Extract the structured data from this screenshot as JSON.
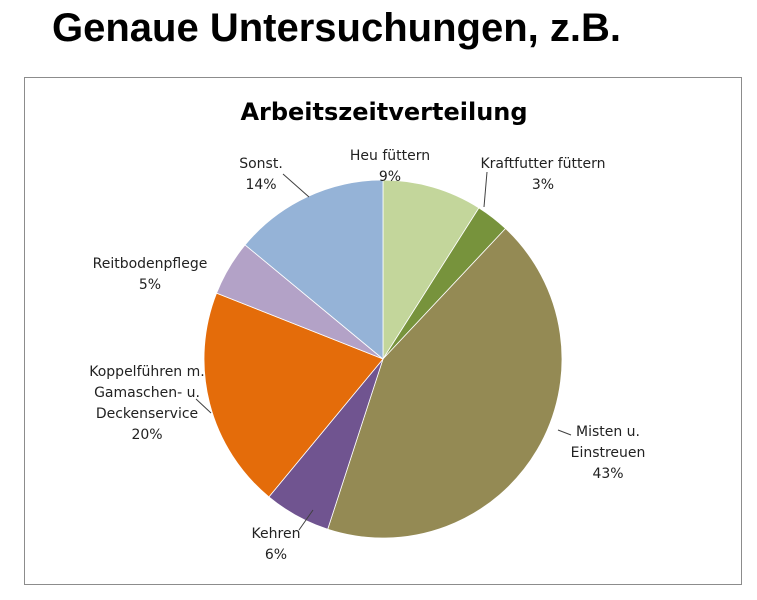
{
  "slide": {
    "title": "Genaue Untersuchungen, z.B."
  },
  "chart_data": {
    "type": "pie",
    "title": "Arbeitszeitverteilung",
    "start_angle_deg": 0,
    "direction": "clockwise",
    "slices": [
      {
        "label": [
          "Heu füttern"
        ],
        "value": 9,
        "value_label": "9%",
        "color": "#c3d69b"
      },
      {
        "label": [
          "Kraftfutter füttern"
        ],
        "value": 3,
        "value_label": "3%",
        "color": "#77933c"
      },
      {
        "label": [
          "Misten u.",
          "Einstreuen"
        ],
        "value": 43,
        "value_label": "43%",
        "color": "#948a54"
      },
      {
        "label": [
          "Kehren"
        ],
        "value": 6,
        "value_label": "6%",
        "color": "#705490"
      },
      {
        "label": [
          "Koppelführen m.",
          "Gamaschen- u.",
          "Deckenservice"
        ],
        "value": 20,
        "value_label": "20%",
        "color": "#e46c0a"
      },
      {
        "label": [
          "Reitbodenpflege"
        ],
        "value": 5,
        "value_label": "5%",
        "color": "#b3a2c7"
      },
      {
        "label": [
          "Sonst."
        ],
        "value": 14,
        "value_label": "14%",
        "color": "#95b3d7"
      }
    ]
  }
}
